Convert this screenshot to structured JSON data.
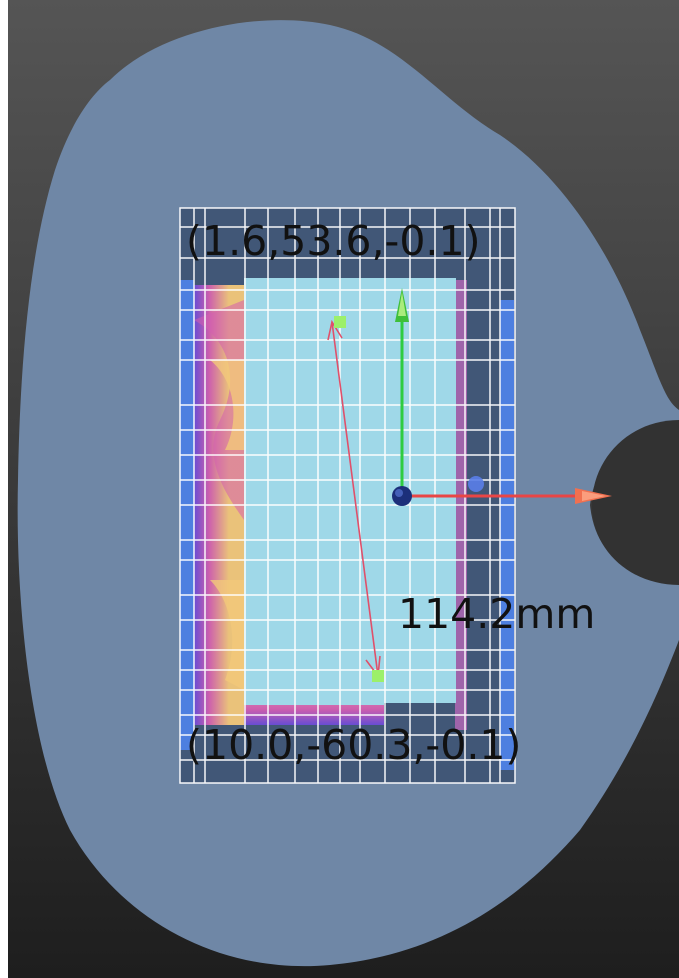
{
  "viewport": {
    "labels": {
      "top_point_coordinates": "(1.6,53.6,-0.1)",
      "bottom_point_coordinates": "(10.0,-60.3,-0.1)",
      "measured_distance": "114.2mm"
    },
    "colors": {
      "background": "#2f2f2f",
      "surface": "#6f87a6",
      "scanned_region": "#9fd8e8",
      "grid_line": "#ffffff",
      "x_axis": "#e94545",
      "y_axis": "#2ecc40",
      "origin": "#1c2f7a",
      "measure_line": "#e0506a",
      "measure_point": "#9cf06a",
      "heatmap_hot": "#f3c87a",
      "heatmap_mid": "#d45fb0",
      "heatmap_cool": "#6a4cd8",
      "frame_dark": "#3a4f6e"
    },
    "icons": [
      "origin-icon",
      "x-axis-arrow-icon",
      "y-axis-arrow-icon",
      "measure-point-icon"
    ]
  }
}
